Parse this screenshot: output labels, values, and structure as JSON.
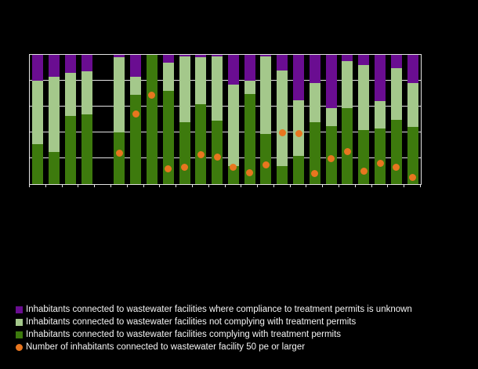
{
  "legend": {
    "items": [
      {
        "label": "Inhabitants connected to wastewater facilities where compliance to treatment permits is unknown",
        "marker": "square",
        "color_key": "unknown"
      },
      {
        "label": "Inhabitants connected to wastewater facilities not complying with treatment permits",
        "marker": "square",
        "color_key": "not_complying"
      },
      {
        "label": "Inhabitants connected to wastewater facilities complying with treatment permits",
        "marker": "square",
        "color_key": "complying"
      },
      {
        "label": "Number of inhabitants connected to wastewater facility 50 pe or larger",
        "marker": "circle",
        "color_key": "dot"
      }
    ]
  },
  "chart_data": {
    "type": "bar",
    "stacked": true,
    "ylim": [
      0,
      100
    ],
    "gridlines_pct": [
      20,
      40,
      60,
      80
    ],
    "grid": true,
    "legend_position": "bottom",
    "slots": 24,
    "note": "Stacked percentage bars (0-100%). Slot 5 is an empty separator between the aggregate bars (1-4) and the country bars (6-24). Dot = secondary marker series; first four bars have no dot. X tick labels, y tick labels and title are not visible in the image.",
    "series_names": {
      "complying": "Inhabitants connected to wastewater facilities complying with treatment permits",
      "not_complying": "Inhabitants connected to wastewater facilities not complying with treatment permits",
      "unknown": "Inhabitants connected to wastewater facilities where compliance to treatment permits is unknown",
      "dot": "Number of inhabitants connected to wastewater facility 50 pe or larger"
    },
    "bars": [
      {
        "slot": 1,
        "complying": 31,
        "not_complying": 49,
        "unknown": 20,
        "dot": null
      },
      {
        "slot": 2,
        "complying": 25,
        "not_complying": 58,
        "unknown": 17,
        "dot": null
      },
      {
        "slot": 3,
        "complying": 53,
        "not_complying": 33,
        "unknown": 14,
        "dot": null
      },
      {
        "slot": 4,
        "complying": 54,
        "not_complying": 33,
        "unknown": 13,
        "dot": null
      },
      {
        "slot": 6,
        "complying": 40,
        "not_complying": 58,
        "unknown": 2,
        "dot": 24
      },
      {
        "slot": 7,
        "complying": 69,
        "not_complying": 14,
        "unknown": 17,
        "dot": 54
      },
      {
        "slot": 8,
        "complying": 100,
        "not_complying": 0,
        "unknown": 0,
        "dot": 69
      },
      {
        "slot": 9,
        "complying": 72,
        "not_complying": 22,
        "unknown": 6,
        "dot": 12
      },
      {
        "slot": 10,
        "complying": 48,
        "not_complying": 51,
        "unknown": 1,
        "dot": 13
      },
      {
        "slot": 11,
        "complying": 62,
        "not_complying": 36,
        "unknown": 2,
        "dot": 23
      },
      {
        "slot": 12,
        "complying": 49,
        "not_complying": 50,
        "unknown": 1,
        "dot": 21
      },
      {
        "slot": 13,
        "complying": 14,
        "not_complying": 63,
        "unknown": 23,
        "dot": 13
      },
      {
        "slot": 14,
        "complying": 70,
        "not_complying": 10,
        "unknown": 20,
        "dot": 9
      },
      {
        "slot": 15,
        "complying": 39,
        "not_complying": 60,
        "unknown": 1,
        "dot": 15
      },
      {
        "slot": 16,
        "complying": 14,
        "not_complying": 74,
        "unknown": 12,
        "dot": 40
      },
      {
        "slot": 17,
        "complying": 22,
        "not_complying": 43,
        "unknown": 35,
        "dot": 39
      },
      {
        "slot": 18,
        "complying": 48,
        "not_complying": 30,
        "unknown": 22,
        "dot": 8
      },
      {
        "slot": 19,
        "complying": 45,
        "not_complying": 14,
        "unknown": 41,
        "dot": 20
      },
      {
        "slot": 20,
        "complying": 59,
        "not_complying": 36,
        "unknown": 5,
        "dot": 25
      },
      {
        "slot": 21,
        "complying": 42,
        "not_complying": 50,
        "unknown": 8,
        "dot": 10
      },
      {
        "slot": 22,
        "complying": 43,
        "not_complying": 21,
        "unknown": 36,
        "dot": 16
      },
      {
        "slot": 23,
        "complying": 50,
        "not_complying": 40,
        "unknown": 10,
        "dot": 13
      },
      {
        "slot": 24,
        "complying": 44,
        "not_complying": 34,
        "unknown": 22,
        "dot": 5
      }
    ],
    "colors": {
      "unknown": "#6a0d91",
      "not_complying": "#a4c88b",
      "complying": "#3d7a0d",
      "dot": "#e8761f",
      "grid": "#e3e3e3",
      "background": "#000000",
      "text": "#f5f5f5"
    }
  }
}
